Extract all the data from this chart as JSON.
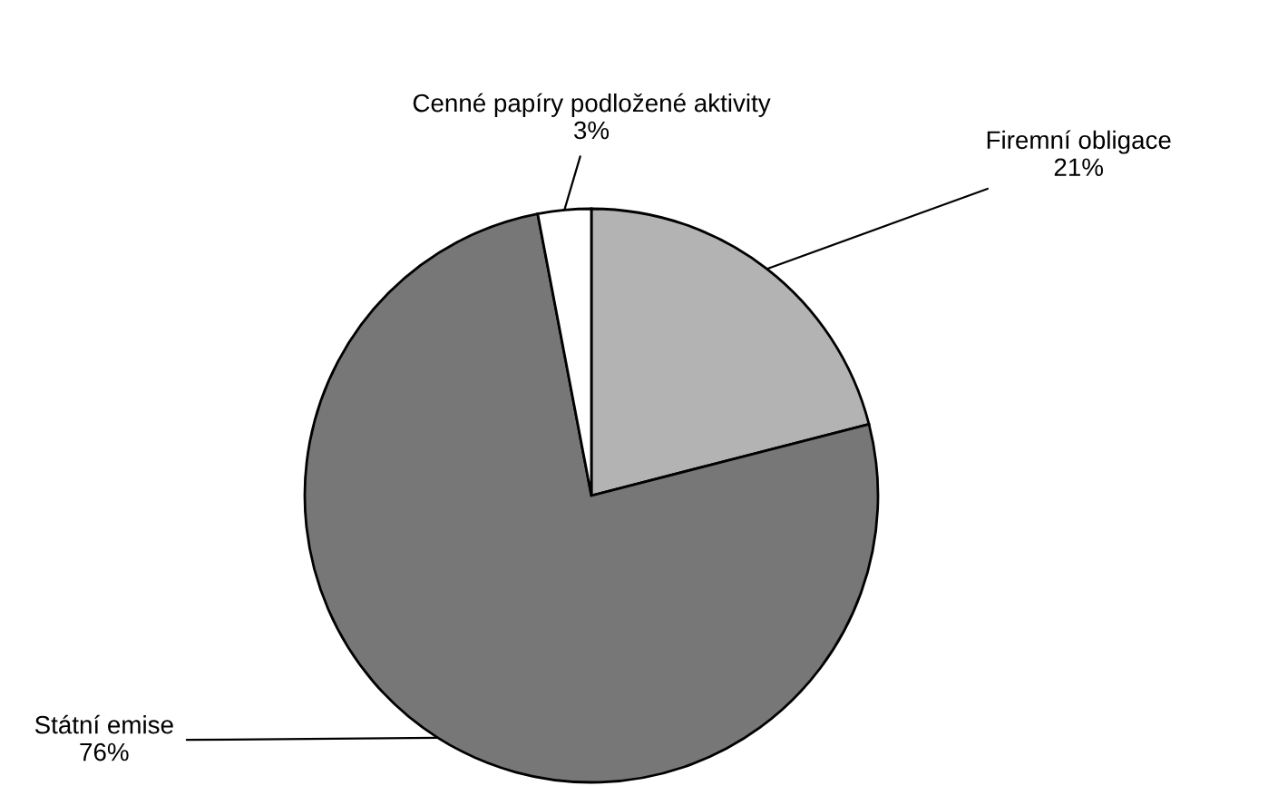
{
  "chart_data": {
    "type": "pie",
    "categories": [
      "Firemní obligace",
      "Státní emise",
      "Cenné papíry podložené aktivity"
    ],
    "values": [
      21,
      76,
      3
    ],
    "colors": [
      "#b3b3b3",
      "#777777",
      "#ffffff"
    ],
    "value_labels": [
      "21%",
      "76%",
      "3%"
    ]
  }
}
